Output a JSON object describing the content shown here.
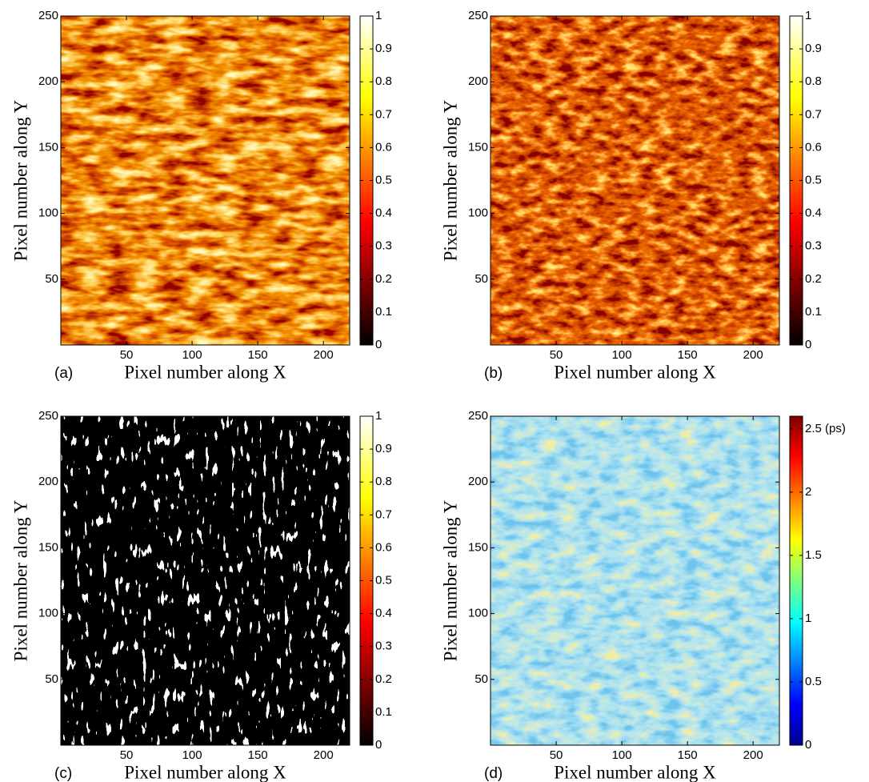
{
  "chart_data": [
    {
      "type": "heatmap",
      "panel_label": "(a)",
      "xlabel": "Pixel number along X",
      "ylabel": "Pixel number along Y",
      "xlim": [
        0,
        220
      ],
      "ylim": [
        0,
        250
      ],
      "xticks": [
        50,
        100,
        150,
        200
      ],
      "yticks": [
        50,
        100,
        150,
        200,
        250
      ],
      "colorbar": {
        "colormap": "hot",
        "lim": [
          0,
          1
        ],
        "ticks": [
          0,
          0.1,
          0.2,
          0.3,
          0.4,
          0.5,
          0.6,
          0.7,
          0.8,
          0.9,
          1
        ]
      }
    },
    {
      "type": "heatmap",
      "panel_label": "(b)",
      "xlabel": "Pixel number along X",
      "ylabel": "Pixel number along Y",
      "xlim": [
        0,
        220
      ],
      "ylim": [
        0,
        250
      ],
      "xticks": [
        50,
        100,
        150,
        200
      ],
      "yticks": [
        50,
        100,
        150,
        200,
        250
      ],
      "colorbar": {
        "colormap": "hot",
        "lim": [
          0,
          1
        ],
        "ticks": [
          0,
          0.1,
          0.2,
          0.3,
          0.4,
          0.5,
          0.6,
          0.7,
          0.8,
          0.9,
          1
        ]
      }
    },
    {
      "type": "heatmap",
      "panel_label": "(c)",
      "xlabel": "Pixel number along X",
      "ylabel": "Pixel number along Y",
      "xlim": [
        0,
        220
      ],
      "ylim": [
        0,
        250
      ],
      "xticks": [
        50,
        100,
        150,
        200
      ],
      "yticks": [
        50,
        100,
        150,
        200,
        250
      ],
      "colorbar": {
        "colormap": "hot",
        "lim": [
          0,
          1
        ],
        "ticks": [
          0,
          0.1,
          0.2,
          0.3,
          0.4,
          0.5,
          0.6,
          0.7,
          0.8,
          0.9,
          1
        ]
      }
    },
    {
      "type": "heatmap",
      "panel_label": "(d)",
      "xlabel": "Pixel number along X",
      "ylabel": "Pixel number along Y",
      "xlim": [
        0,
        220
      ],
      "ylim": [
        0,
        250
      ],
      "xticks": [
        50,
        100,
        150,
        200
      ],
      "yticks": [
        50,
        100,
        150,
        200,
        250
      ],
      "colorbar": {
        "colormap": "jet",
        "lim": [
          0,
          2.6
        ],
        "ticks": [
          0,
          0.5,
          1,
          1.5,
          2,
          {
            "value": 2.5,
            "label": "2.5 (ps)"
          }
        ]
      }
    }
  ]
}
